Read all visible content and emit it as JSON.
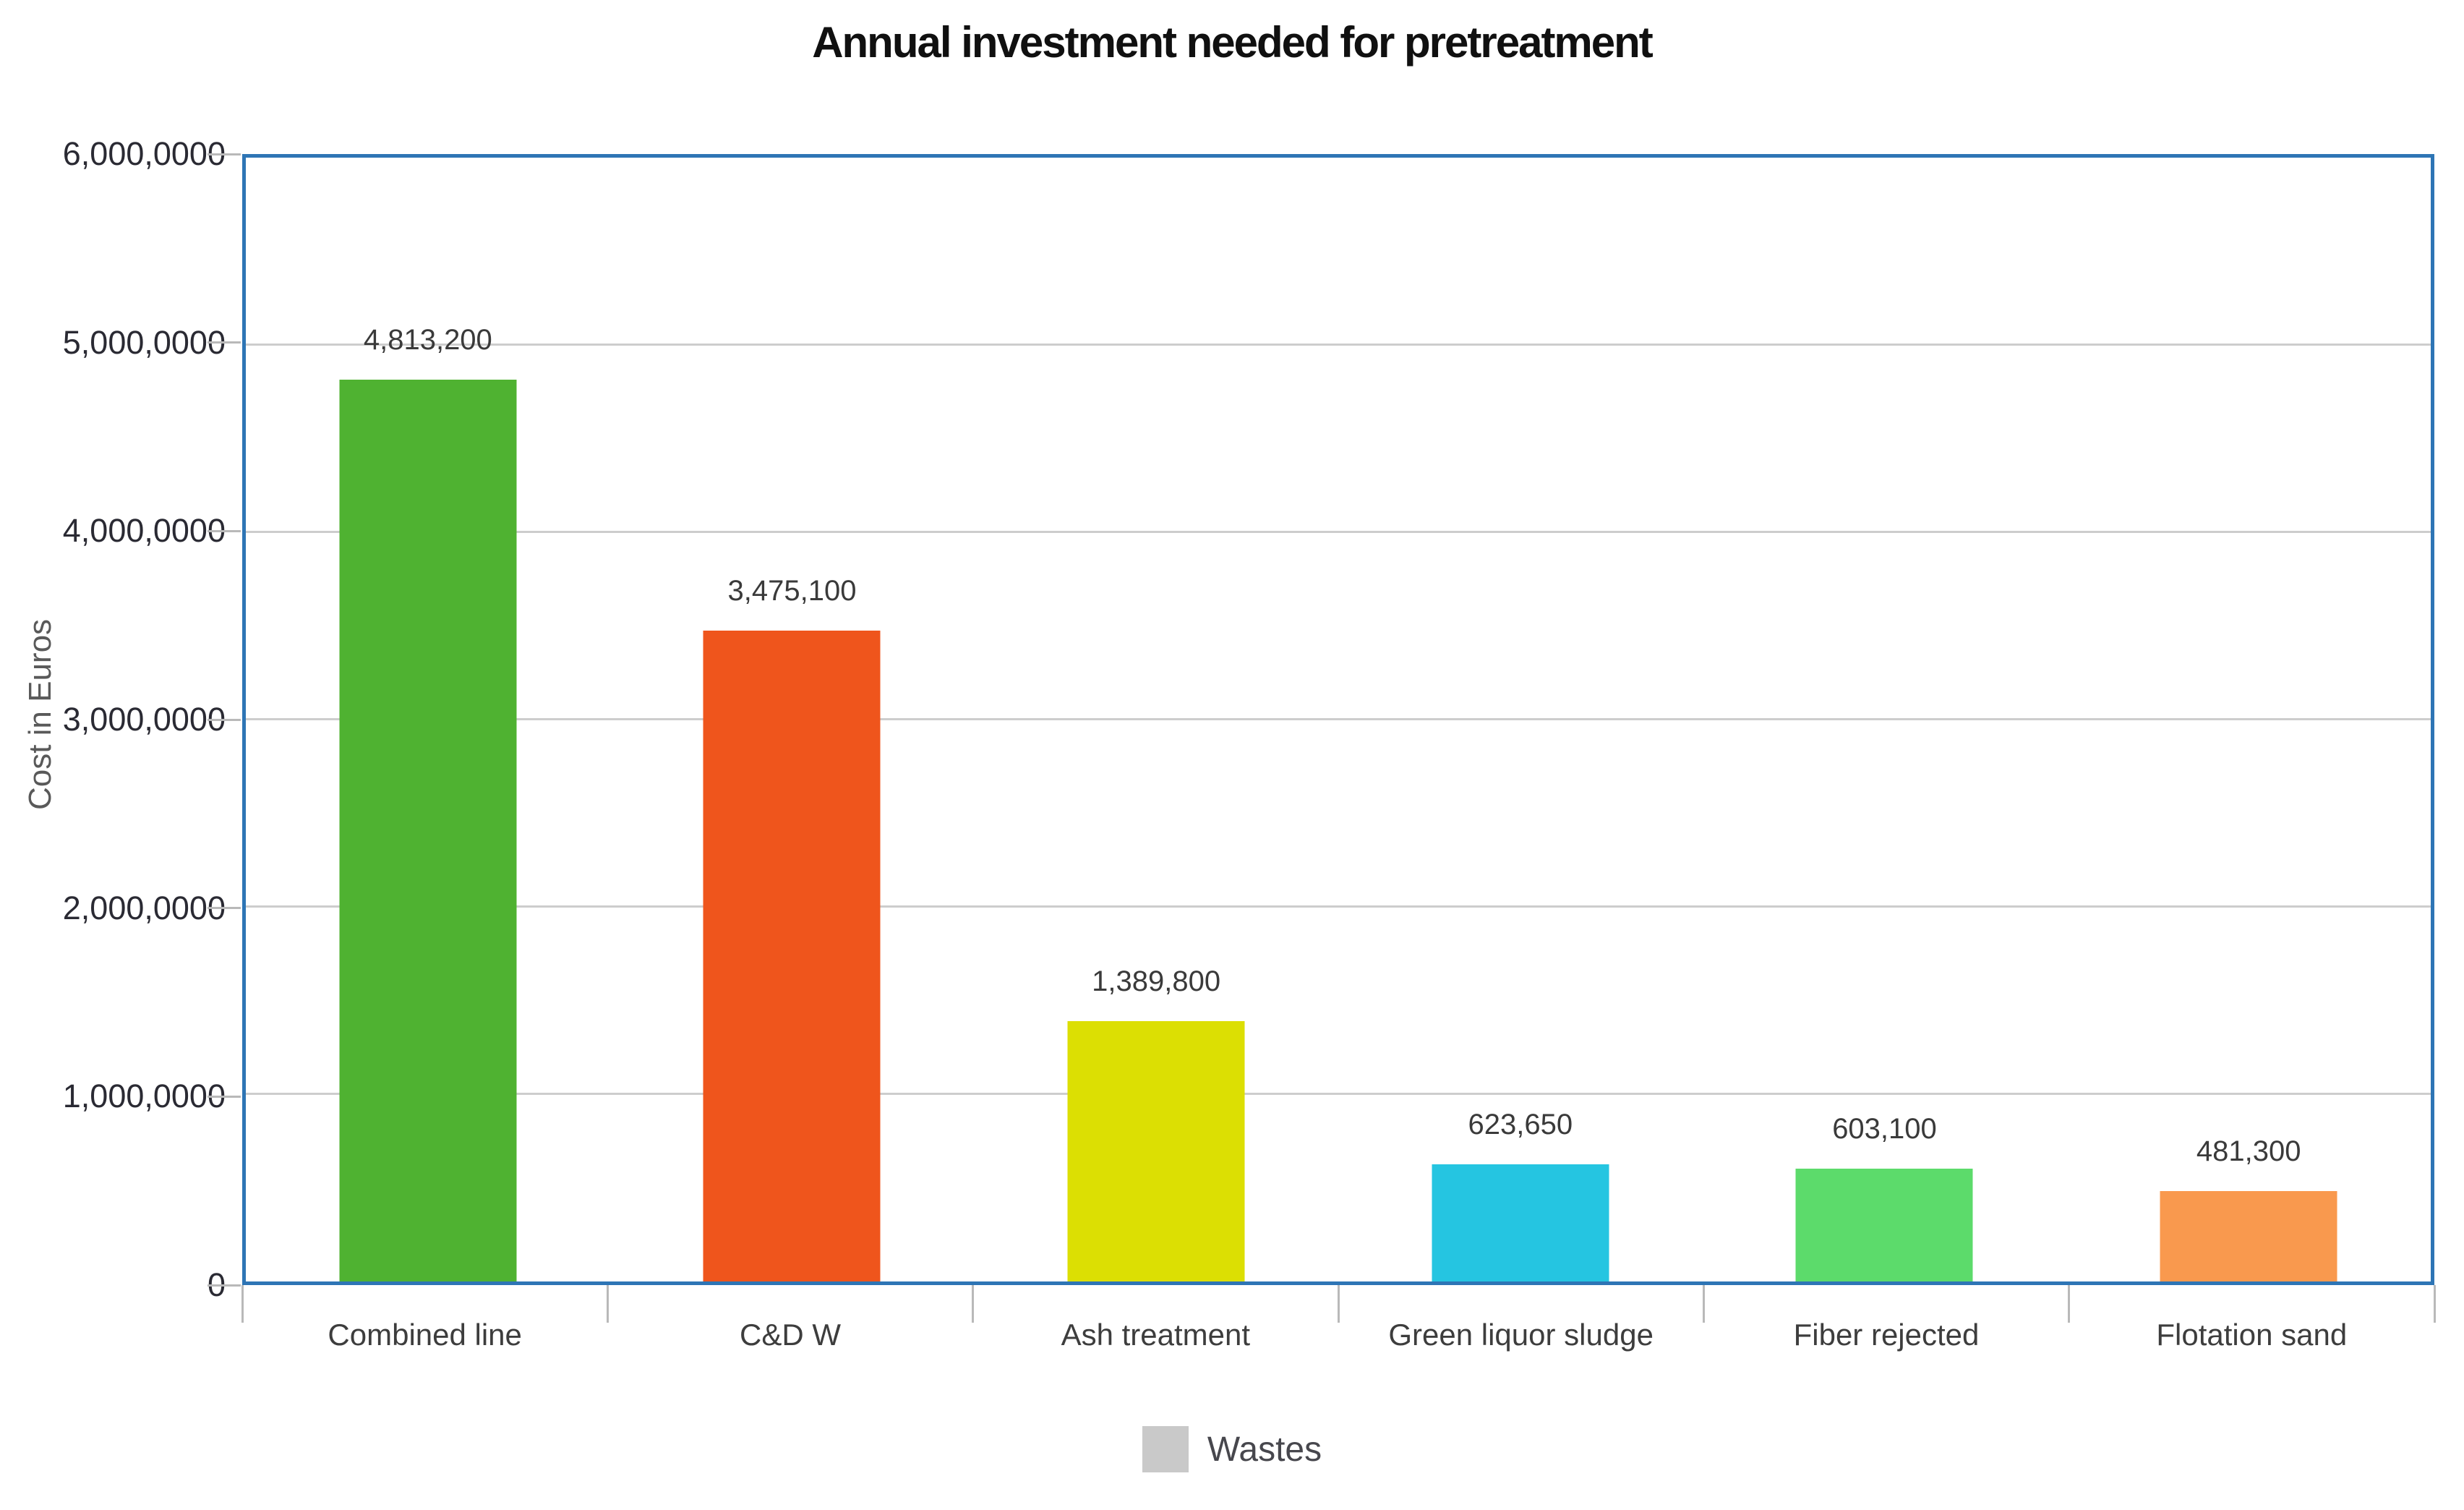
{
  "title": "Annual investment needed for pretreatment",
  "y_axis": {
    "title": "Cost in Euros",
    "tick_labels_top_to_bottom": [
      "6,000,0000",
      "5,000,0000",
      "4,000,0000",
      "3,000,0000",
      "2,000,0000",
      "1,000,0000",
      "0"
    ]
  },
  "legend": {
    "label": "Wastes",
    "swatch_color": "#c9c9c9"
  },
  "colors": {
    "plot_border": "#2e75b5",
    "gridline": "#cdcdcd",
    "tick": "#b9b9b9",
    "title_text": "#101010",
    "axis_text": "#2a2a33",
    "category_text": "#3d3d3d",
    "value_text": "#3a3a3a",
    "y_axis_title_text": "#595959",
    "legend_text": "#47474d"
  },
  "chart_data": {
    "type": "bar",
    "title": "Annual investment needed for pretreatment",
    "categories": [
      "Combined line",
      "C&D W",
      "Ash treatment",
      "Green liquor sludge",
      "Fiber rejected",
      "Flotation sand"
    ],
    "values": [
      4813200,
      3475100,
      1389800,
      623650,
      603100,
      481300
    ],
    "value_labels": [
      "4,813,200",
      "3,475,100",
      "1,389,800",
      "623,650",
      "603,100",
      "481,300"
    ],
    "bar_colors": [
      "#4fb231",
      "#ef551c",
      "#dcdf03",
      "#25c5e1",
      "#5cdb6b",
      "#f9994e"
    ],
    "xlabel": "",
    "ylabel": "Cost in Euros",
    "ylim": [
      0,
      6000000
    ],
    "y_tick_labels": [
      "0",
      "1,000,0000",
      "2,000,0000",
      "3,000,0000",
      "4,000,0000",
      "5,000,0000",
      "6,000,0000"
    ],
    "grid": true,
    "legend_entries": [
      "Wastes"
    ],
    "legend_position": "bottom"
  }
}
